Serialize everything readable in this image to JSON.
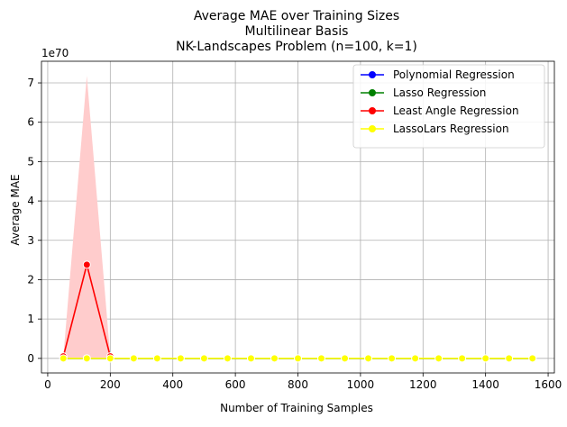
{
  "chart_data": {
    "type": "line",
    "title_lines": [
      "Average MAE over Training Sizes",
      "Multilinear Basis",
      "NK-Landscapes Problem (n=100, k=1)"
    ],
    "xlabel": "Number of Training Samples",
    "ylabel": "Average MAE",
    "y_offset_label": "1e70",
    "xlim": [
      -20,
      1620
    ],
    "ylim": [
      -0.37,
      7.55
    ],
    "xticks": [
      0,
      200,
      400,
      600,
      800,
      1000,
      1200,
      1400,
      1600
    ],
    "yticks": [
      0,
      1,
      2,
      3,
      4,
      5,
      6,
      7
    ],
    "grid": true,
    "legend_position": "top-right",
    "x": [
      50,
      125,
      200,
      275,
      350,
      425,
      500,
      575,
      650,
      725,
      800,
      875,
      950,
      1025,
      1100,
      1175,
      1250,
      1325,
      1400,
      1475,
      1550
    ],
    "series": [
      {
        "name": "Polynomial Regression",
        "color": "#0000ff",
        "values": [
          0,
          0,
          0,
          0,
          0,
          0,
          0,
          0,
          0,
          0,
          0,
          0,
          0,
          0,
          0,
          0,
          0,
          0,
          0,
          0,
          0
        ]
      },
      {
        "name": "Lasso Regression",
        "color": "#008000",
        "values": [
          0,
          0,
          0,
          0,
          0,
          0,
          0,
          0,
          0,
          0,
          0,
          0,
          0,
          0,
          0,
          0,
          0,
          0,
          0,
          0,
          0
        ]
      },
      {
        "name": "Least Angle Regression",
        "color": "#ff0000",
        "band_color": "#ffcccc",
        "x": [
          50,
          125,
          200
        ],
        "values": [
          0.05,
          2.38,
          0.05
        ],
        "band_lower": [
          0,
          0,
          0
        ],
        "band_upper": [
          0.05,
          7.18,
          0.05
        ]
      },
      {
        "name": "LassoLars Regression",
        "color": "#ffff00",
        "values": [
          0,
          0,
          0,
          0,
          0,
          0,
          0,
          0,
          0,
          0,
          0,
          0,
          0,
          0,
          0,
          0,
          0,
          0,
          0,
          0,
          0
        ]
      }
    ]
  }
}
